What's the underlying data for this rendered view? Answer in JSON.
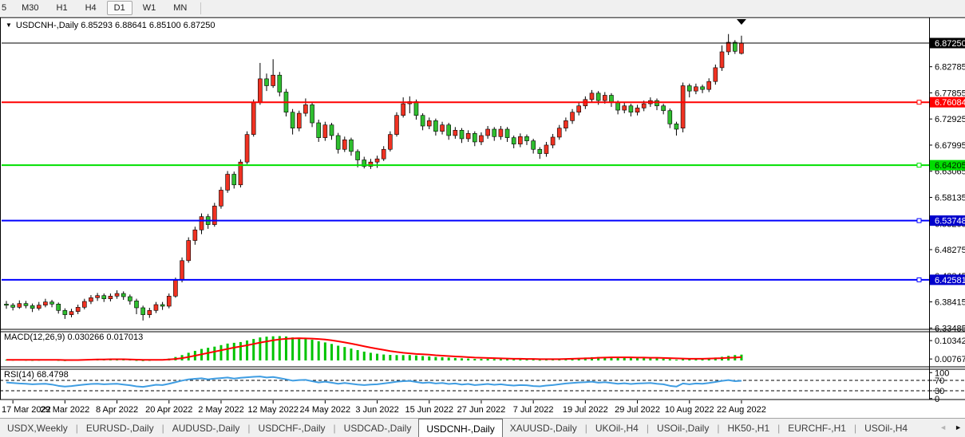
{
  "toolbar": {
    "timeframes": [
      {
        "label": "5",
        "selected": false
      },
      {
        "label": "M30",
        "selected": false
      },
      {
        "label": "H1",
        "selected": false
      },
      {
        "label": "H4",
        "selected": false
      },
      {
        "label": "D1",
        "selected": true
      },
      {
        "label": "W1",
        "selected": false
      },
      {
        "label": "MN",
        "selected": false
      }
    ]
  },
  "chart": {
    "title_arrow": "▼",
    "title": "USDCNH-,Daily",
    "ohlc": "6.85293 6.88641 6.85100 6.87250",
    "macd_label": "MACD(12,26,9) 0.030266 0.017013",
    "rsi_label": "RSI(14) 68.4798"
  },
  "chart_data": {
    "type": "candlestick",
    "symbol": "USDCNH-",
    "timeframe": "Daily",
    "title": "USDCNH-,Daily",
    "last_ohlc": {
      "open": "6.85293",
      "high": "6.88641",
      "low": "6.85100",
      "close": "6.87250"
    },
    "ylim": [
      6.3323,
      6.9206
    ],
    "grid": false,
    "x_labels": [
      "17 Mar 2022",
      "29 Mar 2022",
      "8 Apr 2022",
      "20 Apr 2022",
      "2 May 2022",
      "12 May 2022",
      "24 May 2022",
      "3 Jun 2022",
      "15 Jun 2022",
      "27 Jun 2022",
      "7 Jul 2022",
      "19 Jul 2022",
      "29 Jul 2022",
      "10 Aug 2022",
      "22 Aug 2022"
    ],
    "first_tick_index": 1,
    "tick_step": 8,
    "y_ticks": [
      "6.82785",
      "6.77855",
      "6.72925",
      "6.67995",
      "6.63065",
      "6.58135",
      "6.53205",
      "6.48275",
      "6.43345",
      "6.38415",
      "6.33485"
    ],
    "current_price": {
      "price": 6.8725,
      "label": "6.87250",
      "line_color": "#000000",
      "badge_bg": "#000000",
      "badge_fg": "#ffffff"
    },
    "levels": [
      {
        "price": 6.76084,
        "label": "6.76084",
        "color": "#ff0000",
        "badge_bg": "#ff0000",
        "badge_fg": "#ffffff"
      },
      {
        "price": 6.64205,
        "label": "6.64205",
        "color": "#00e000",
        "badge_bg": "#00dd00",
        "badge_fg": "#002200"
      },
      {
        "price": 6.53748,
        "label": "6.53748",
        "color": "#0000ff",
        "badge_bg": "#0000cc",
        "badge_fg": "#ffffff"
      },
      {
        "price": 6.42581,
        "label": "6.42581",
        "color": "#0000ff",
        "badge_bg": "#0000cc",
        "badge_fg": "#ffffff"
      }
    ],
    "arrow_marker": {
      "index": 113,
      "direction": "down",
      "color": "#000000"
    },
    "colors": {
      "up_candle": "#f03222",
      "down_candle": "#2fbe2f",
      "candle_outline": "#000000",
      "wick": "#000000",
      "macd_hist": "#00c400",
      "macd_signal": "#ff0000",
      "rsi_line": "#3f9de2",
      "level_dash": "#000000"
    },
    "ohlc": [
      [
        6.38,
        6.386,
        6.371,
        6.378
      ],
      [
        6.378,
        6.382,
        6.368,
        6.374
      ],
      [
        6.374,
        6.387,
        6.371,
        6.381
      ],
      [
        6.381,
        6.386,
        6.372,
        6.377
      ],
      [
        6.377,
        6.381,
        6.365,
        6.372
      ],
      [
        6.372,
        6.384,
        6.368,
        6.378
      ],
      [
        6.378,
        6.39,
        6.374,
        6.384
      ],
      [
        6.384,
        6.388,
        6.374,
        6.38
      ],
      [
        6.38,
        6.383,
        6.362,
        6.368
      ],
      [
        6.368,
        6.372,
        6.352,
        6.36
      ],
      [
        6.36,
        6.371,
        6.355,
        6.366
      ],
      [
        6.366,
        6.379,
        6.361,
        6.374
      ],
      [
        6.374,
        6.39,
        6.37,
        6.385
      ],
      [
        6.385,
        6.397,
        6.38,
        6.392
      ],
      [
        6.392,
        6.401,
        6.386,
        6.396
      ],
      [
        6.396,
        6.4,
        6.384,
        6.39
      ],
      [
        6.39,
        6.4,
        6.385,
        6.395
      ],
      [
        6.395,
        6.406,
        6.39,
        6.4
      ],
      [
        6.4,
        6.404,
        6.388,
        6.394
      ],
      [
        6.394,
        6.398,
        6.379,
        6.386
      ],
      [
        6.386,
        6.39,
        6.361,
        6.373
      ],
      [
        6.373,
        6.377,
        6.349,
        6.36
      ],
      [
        6.36,
        6.373,
        6.354,
        6.368
      ],
      [
        6.368,
        6.384,
        6.363,
        6.379
      ],
      [
        6.379,
        6.384,
        6.369,
        6.376
      ],
      [
        6.376,
        6.4,
        6.372,
        6.395
      ],
      [
        6.395,
        6.43,
        6.392,
        6.425
      ],
      [
        6.425,
        6.468,
        6.421,
        6.462
      ],
      [
        6.462,
        6.506,
        6.458,
        6.5
      ],
      [
        6.5,
        6.526,
        6.492,
        6.52
      ],
      [
        6.52,
        6.551,
        6.512,
        6.545
      ],
      [
        6.545,
        6.55,
        6.522,
        6.53
      ],
      [
        6.53,
        6.571,
        6.526,
        6.565
      ],
      [
        6.565,
        6.601,
        6.56,
        6.595
      ],
      [
        6.595,
        6.631,
        6.59,
        6.625
      ],
      [
        6.625,
        6.63,
        6.598,
        6.605
      ],
      [
        6.605,
        6.653,
        6.6,
        6.648
      ],
      [
        6.648,
        6.706,
        6.644,
        6.7
      ],
      [
        6.7,
        6.766,
        6.696,
        6.76
      ],
      [
        6.76,
        6.835,
        6.756,
        6.805
      ],
      [
        6.805,
        6.815,
        6.782,
        6.792
      ],
      [
        6.792,
        6.842,
        6.788,
        6.812
      ],
      [
        6.812,
        6.818,
        6.772,
        6.78
      ],
      [
        6.78,
        6.786,
        6.734,
        6.742
      ],
      [
        6.742,
        6.748,
        6.7,
        6.712
      ],
      [
        6.712,
        6.745,
        6.706,
        6.74
      ],
      [
        6.74,
        6.768,
        6.734,
        6.756
      ],
      [
        6.756,
        6.76,
        6.714,
        6.722
      ],
      [
        6.722,
        6.728,
        6.686,
        6.694
      ],
      [
        6.694,
        6.724,
        6.688,
        6.718
      ],
      [
        6.718,
        6.722,
        6.69,
        6.698
      ],
      [
        6.698,
        6.703,
        6.664,
        6.672
      ],
      [
        6.672,
        6.696,
        6.667,
        6.69
      ],
      [
        6.69,
        6.694,
        6.66,
        6.668
      ],
      [
        6.668,
        6.672,
        6.638,
        6.652
      ],
      [
        6.652,
        6.658,
        6.636,
        6.64
      ],
      [
        6.64,
        6.654,
        6.635,
        6.648
      ],
      [
        6.648,
        6.66,
        6.637,
        6.654
      ],
      [
        6.654,
        6.678,
        6.65,
        6.672
      ],
      [
        6.672,
        6.706,
        6.668,
        6.7
      ],
      [
        6.7,
        6.742,
        6.696,
        6.736
      ],
      [
        6.736,
        6.77,
        6.732,
        6.758
      ],
      [
        6.758,
        6.772,
        6.74,
        6.762
      ],
      [
        6.762,
        6.766,
        6.728,
        6.736
      ],
      [
        6.736,
        6.74,
        6.708,
        6.716
      ],
      [
        6.716,
        6.732,
        6.71,
        6.726
      ],
      [
        6.726,
        6.73,
        6.698,
        6.706
      ],
      [
        6.706,
        6.724,
        6.7,
        6.718
      ],
      [
        6.718,
        6.722,
        6.69,
        6.698
      ],
      [
        6.698,
        6.714,
        6.692,
        6.708
      ],
      [
        6.708,
        6.712,
        6.684,
        6.692
      ],
      [
        6.692,
        6.708,
        6.686,
        6.702
      ],
      [
        6.702,
        6.706,
        6.678,
        6.686
      ],
      [
        6.686,
        6.704,
        6.68,
        6.698
      ],
      [
        6.698,
        6.716,
        6.692,
        6.71
      ],
      [
        6.71,
        6.714,
        6.688,
        6.696
      ],
      [
        6.696,
        6.716,
        6.69,
        6.71
      ],
      [
        6.71,
        6.714,
        6.686,
        6.694
      ],
      [
        6.694,
        6.698,
        6.674,
        6.682
      ],
      [
        6.682,
        6.702,
        6.676,
        6.696
      ],
      [
        6.696,
        6.7,
        6.68,
        6.688
      ],
      [
        6.688,
        6.692,
        6.664,
        6.672
      ],
      [
        6.672,
        6.676,
        6.654,
        6.664
      ],
      [
        6.664,
        6.686,
        6.658,
        6.68
      ],
      [
        6.68,
        6.701,
        6.674,
        6.695
      ],
      [
        6.695,
        6.718,
        6.69,
        6.712
      ],
      [
        6.712,
        6.732,
        6.706,
        6.726
      ],
      [
        6.726,
        6.748,
        6.72,
        6.742
      ],
      [
        6.742,
        6.76,
        6.736,
        6.754
      ],
      [
        6.754,
        6.772,
        6.748,
        6.766
      ],
      [
        6.766,
        6.784,
        6.76,
        6.778
      ],
      [
        6.778,
        6.782,
        6.756,
        6.764
      ],
      [
        6.764,
        6.78,
        6.758,
        6.774
      ],
      [
        6.774,
        6.778,
        6.752,
        6.76
      ],
      [
        6.76,
        6.764,
        6.738,
        6.746
      ],
      [
        6.746,
        6.76,
        6.74,
        6.754
      ],
      [
        6.754,
        6.758,
        6.734,
        6.742
      ],
      [
        6.742,
        6.756,
        6.736,
        6.75
      ],
      [
        6.75,
        6.764,
        6.744,
        6.758
      ],
      [
        6.758,
        6.77,
        6.752,
        6.764
      ],
      [
        6.764,
        6.768,
        6.746,
        6.754
      ],
      [
        6.754,
        6.758,
        6.738,
        6.745
      ],
      [
        6.745,
        6.749,
        6.712,
        6.72
      ],
      [
        6.72,
        6.724,
        6.698,
        6.71
      ],
      [
        6.712,
        6.798,
        6.704,
        6.792
      ],
      [
        6.792,
        6.796,
        6.77,
        6.782
      ],
      [
        6.782,
        6.796,
        6.776,
        6.79
      ],
      [
        6.79,
        6.794,
        6.778,
        6.785
      ],
      [
        6.785,
        6.806,
        6.78,
        6.8
      ],
      [
        6.8,
        6.832,
        6.794,
        6.826
      ],
      [
        6.826,
        6.868,
        6.82,
        6.856
      ],
      [
        6.856,
        6.8895,
        6.85,
        6.874
      ],
      [
        6.874,
        6.878,
        6.852,
        6.857
      ],
      [
        6.85293,
        6.88641,
        6.851,
        6.8725
      ]
    ],
    "macd": {
      "label": "MACD(12,26,9)",
      "values": "0.030266 0.017013",
      "ticks": [
        "0.103428",
        "0.007674"
      ],
      "ylim": [
        -0.033,
        0.15
      ],
      "hist": [
        0.004,
        0.003,
        0.004,
        0.003,
        0.002,
        0.003,
        0.004,
        0.004,
        0.002,
        0.001,
        0.002,
        0.003,
        0.005,
        0.006,
        0.007,
        0.006,
        0.006,
        0.007,
        0.006,
        0.004,
        0.002,
        0.001,
        0.002,
        0.004,
        0.005,
        0.01,
        0.018,
        0.028,
        0.04,
        0.05,
        0.06,
        0.066,
        0.072,
        0.08,
        0.088,
        0.092,
        0.096,
        0.104,
        0.112,
        0.12,
        0.124,
        0.126,
        0.127,
        0.125,
        0.12,
        0.116,
        0.113,
        0.108,
        0.1,
        0.094,
        0.086,
        0.077,
        0.07,
        0.062,
        0.054,
        0.046,
        0.04,
        0.035,
        0.031,
        0.029,
        0.028,
        0.028,
        0.028,
        0.026,
        0.023,
        0.021,
        0.018,
        0.017,
        0.015,
        0.013,
        0.011,
        0.01,
        0.008,
        0.008,
        0.008,
        0.007,
        0.007,
        0.006,
        0.005,
        0.005,
        0.005,
        0.004,
        0.003,
        0.004,
        0.005,
        0.007,
        0.009,
        0.011,
        0.013,
        0.015,
        0.017,
        0.018,
        0.018,
        0.017,
        0.016,
        0.015,
        0.014,
        0.013,
        0.013,
        0.012,
        0.011,
        0.009,
        0.007,
        0.004,
        0.006,
        0.008,
        0.009,
        0.01,
        0.012,
        0.015,
        0.019,
        0.024,
        0.028,
        0.0303
      ],
      "signal": [
        0.003,
        0.003,
        0.003,
        0.003,
        0.003,
        0.003,
        0.003,
        0.003,
        0.003,
        0.002,
        0.002,
        0.002,
        0.003,
        0.004,
        0.005,
        0.005,
        0.006,
        0.006,
        0.006,
        0.005,
        0.004,
        0.003,
        0.003,
        0.003,
        0.003,
        0.005,
        0.008,
        0.012,
        0.018,
        0.025,
        0.032,
        0.039,
        0.046,
        0.053,
        0.06,
        0.067,
        0.073,
        0.079,
        0.086,
        0.093,
        0.099,
        0.105,
        0.11,
        0.113,
        0.115,
        0.116,
        0.115,
        0.114,
        0.112,
        0.109,
        0.105,
        0.1,
        0.094,
        0.088,
        0.081,
        0.074,
        0.067,
        0.061,
        0.055,
        0.049,
        0.044,
        0.04,
        0.037,
        0.034,
        0.032,
        0.03,
        0.027,
        0.025,
        0.023,
        0.021,
        0.019,
        0.017,
        0.015,
        0.014,
        0.013,
        0.012,
        0.011,
        0.01,
        0.009,
        0.009,
        0.008,
        0.008,
        0.007,
        0.007,
        0.007,
        0.007,
        0.008,
        0.009,
        0.01,
        0.011,
        0.012,
        0.014,
        0.015,
        0.016,
        0.016,
        0.016,
        0.016,
        0.015,
        0.015,
        0.014,
        0.014,
        0.013,
        0.012,
        0.011,
        0.01,
        0.009,
        0.009,
        0.009,
        0.01,
        0.011,
        0.012,
        0.014,
        0.015,
        0.017
      ]
    },
    "rsi": {
      "label": "RSI(14)",
      "current": "68.4798",
      "ticks": [
        "100",
        "70",
        "30",
        "0"
      ],
      "levels": [
        70,
        30
      ],
      "ylim": [
        -4,
        113
      ],
      "values": [
        62,
        60,
        58,
        57,
        55,
        56,
        57,
        54,
        49,
        46,
        48,
        51,
        54,
        56,
        57,
        55,
        56,
        57,
        54,
        51,
        47,
        45,
        49,
        53,
        52,
        57,
        63,
        69,
        74,
        76,
        78,
        74,
        77,
        79,
        81,
        77,
        80,
        82,
        84,
        85,
        81,
        83,
        79,
        74,
        69,
        71,
        72,
        67,
        62,
        65,
        61,
        57,
        60,
        57,
        54,
        52,
        54,
        55,
        58,
        61,
        65,
        67,
        68,
        64,
        60,
        62,
        58,
        60,
        56,
        58,
        54,
        56,
        52,
        54,
        56,
        53,
        55,
        52,
        50,
        52,
        51,
        48,
        47,
        50,
        52,
        55,
        58,
        60,
        62,
        63,
        65,
        61,
        63,
        60,
        57,
        59,
        56,
        58,
        59,
        60,
        57,
        55,
        49,
        46,
        58,
        55,
        58,
        57,
        60,
        64,
        68,
        71,
        67,
        68.48
      ]
    }
  },
  "tabs": {
    "items": [
      {
        "label": "USDX,Weekly",
        "selected": false
      },
      {
        "label": "EURUSD-,Daily",
        "selected": false
      },
      {
        "label": "AUDUSD-,Daily",
        "selected": false
      },
      {
        "label": "USDCHF-,Daily",
        "selected": false
      },
      {
        "label": "USDCAD-,Daily",
        "selected": false
      },
      {
        "label": "USDCNH-,Daily",
        "selected": true
      },
      {
        "label": "XAUUSD-,Daily",
        "selected": false
      },
      {
        "label": "UKOil-,H4",
        "selected": false
      },
      {
        "label": "USOil-,Daily",
        "selected": false
      },
      {
        "label": "HK50-,H1",
        "selected": false
      },
      {
        "label": "EURCHF-,H1",
        "selected": false
      },
      {
        "label": "USOil-,H4",
        "selected": false
      }
    ],
    "scroll_left": "◄",
    "scroll_right": "►"
  }
}
